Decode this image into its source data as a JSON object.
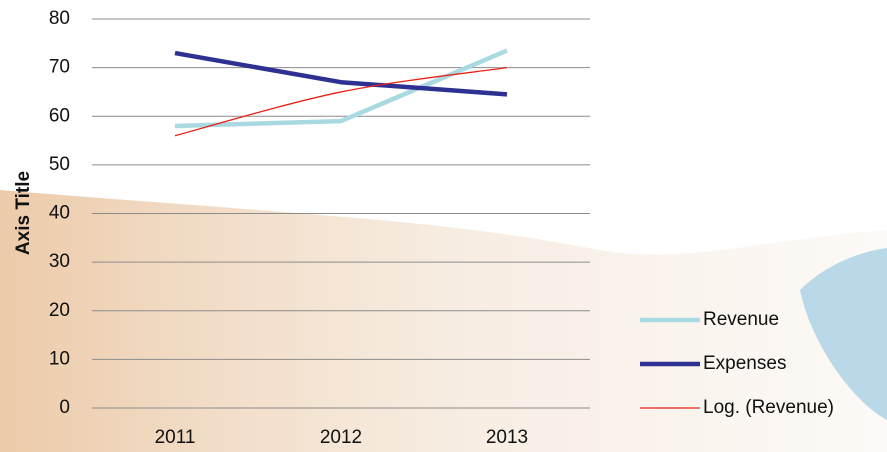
{
  "chart_data": {
    "type": "line",
    "axis_title": "Axis Title",
    "categories": [
      "2011",
      "2012",
      "2013"
    ],
    "series": [
      {
        "name": "Revenue",
        "color": "#a9d9e1",
        "values": [
          58,
          59,
          73.5
        ]
      },
      {
        "name": "Expenses",
        "color": "#2e3192",
        "values": [
          73,
          67,
          64.5
        ]
      },
      {
        "name": "Log. (Revenue)",
        "color": "#e8231b",
        "values": [
          56,
          65,
          70
        ],
        "trendline": true
      }
    ],
    "ylim": [
      0,
      80
    ],
    "yticks": [
      0,
      10,
      20,
      30,
      40,
      50,
      60,
      70,
      80
    ],
    "grid": true
  }
}
